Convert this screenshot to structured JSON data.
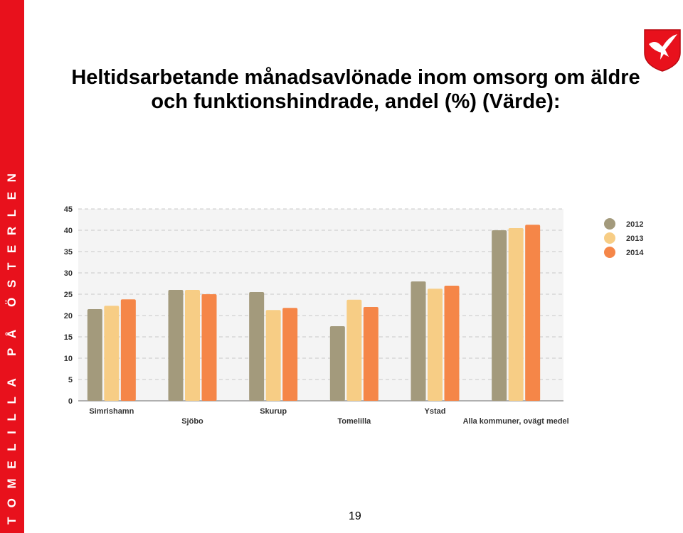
{
  "side_banner": "TOMELILLA PÅ ÖSTERLEN",
  "title_line1": "Heltidsarbetande månadsavlönade inom omsorg om äldre",
  "title_line2": "och funktionshindrade, andel (%) (Värde):",
  "page_number": "19",
  "colors": {
    "banner": "#e8111c",
    "series_2012": "#a39a7c",
    "series_2013": "#f7cd85",
    "series_2014": "#f58648"
  },
  "chart_data": {
    "type": "bar",
    "title": "",
    "xlabel": "",
    "ylabel": "",
    "ylim": [
      0,
      45
    ],
    "yticks": [
      "0",
      "5",
      "10",
      "15",
      "20",
      "25",
      "30",
      "35",
      "40",
      "45"
    ],
    "categories": [
      "Simrishamn",
      "Sjöbo",
      "Skurup",
      "Tomelilla",
      "Ystad",
      "Alla kommuner, ovägt medel"
    ],
    "series": [
      {
        "name": "2012",
        "values": [
          21.5,
          26,
          25.5,
          17.5,
          28,
          40
        ]
      },
      {
        "name": "2013",
        "values": [
          22.3,
          26,
          21.3,
          23.7,
          26.3,
          40.5
        ]
      },
      {
        "name": "2014",
        "values": [
          23.8,
          25,
          21.8,
          22,
          27,
          41.3
        ]
      }
    ],
    "legend_position": "right",
    "grid": true
  }
}
